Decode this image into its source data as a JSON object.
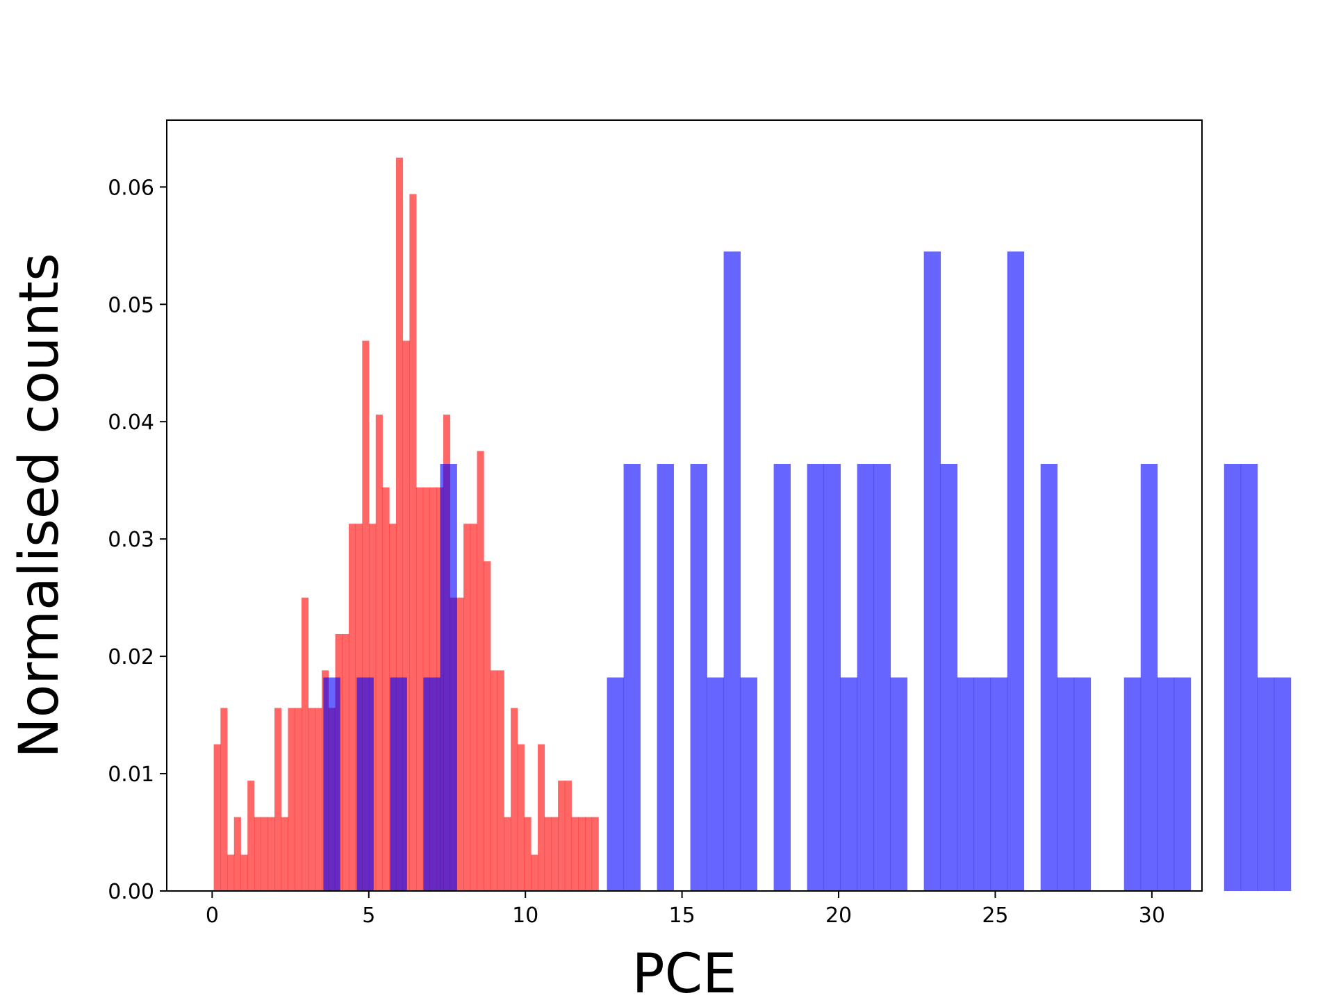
{
  "chart_data": {
    "type": "bar",
    "title": "",
    "xlabel": "PCE",
    "ylabel": "Normalised counts",
    "xlim": [
      -1.45,
      31.6
    ],
    "ylim": [
      0.0,
      0.0657
    ],
    "xticks": [
      0,
      5,
      10,
      15,
      20,
      25,
      30
    ],
    "xtick_labels": [
      "0",
      "5",
      "10",
      "15",
      "20",
      "25",
      "30"
    ],
    "yticks": [
      0.0,
      0.01,
      0.02,
      0.03,
      0.04,
      0.05,
      0.06
    ],
    "ytick_labels": [
      "0.00",
      "0.01",
      "0.02",
      "0.03",
      "0.04",
      "0.05",
      "0.06"
    ],
    "grid": false,
    "legend": "none",
    "series": [
      {
        "color": "#ff0000",
        "opacity": 0.6,
        "bin_start": 0.05,
        "bin_width": 0.2155,
        "values": [
          0.0125,
          0.0156,
          0.0031,
          0.0063,
          0.0031,
          0.0094,
          0.0063,
          0.0063,
          0.0063,
          0.0156,
          0.0063,
          0.0156,
          0.0156,
          0.025,
          0.0156,
          0.0156,
          0.0188,
          0.0156,
          0.0219,
          0.0219,
          0.0313,
          0.0313,
          0.0469,
          0.0313,
          0.0406,
          0.0344,
          0.0313,
          0.0625,
          0.0469,
          0.0594,
          0.0344,
          0.0344,
          0.0344,
          0.0344,
          0.0406,
          0.025,
          0.025,
          0.0313,
          0.0313,
          0.0375,
          0.0281,
          0.0188,
          0.0188,
          0.0063,
          0.0156,
          0.0125,
          0.0063,
          0.0031,
          0.0125,
          0.0063,
          0.0063,
          0.0094,
          0.0094,
          0.0063,
          0.0063,
          0.0063,
          0.0063,
          0.0,
          0.0,
          0.0,
          0.0,
          0.0,
          0.0
        ]
      },
      {
        "color": "#0000ff",
        "opacity": 0.6,
        "bin_start": 3.55,
        "bin_width": 0.5325,
        "values": [
          0.0182,
          0.0,
          0.0182,
          0.0,
          0.0182,
          0.0,
          0.0182,
          0.0364,
          0.0,
          0.0,
          0.0,
          0.0,
          0.0,
          0.0,
          0.0,
          0.0,
          0.0,
          0.0182,
          0.0364,
          0.0,
          0.0364,
          0.0,
          0.0364,
          0.0182,
          0.0545,
          0.0182,
          0.0,
          0.0364,
          0.0,
          0.0364,
          0.0364,
          0.0182,
          0.0364,
          0.0364,
          0.0182,
          0.0,
          0.0545,
          0.0364,
          0.0182,
          0.0182,
          0.0182,
          0.0545,
          0.0,
          0.0364,
          0.0182,
          0.0182,
          0.0,
          0.0,
          0.0182,
          0.0364,
          0.0182,
          0.0182,
          0.0,
          0.0,
          0.0364,
          0.0364,
          0.0182,
          0.0182
        ]
      }
    ]
  }
}
